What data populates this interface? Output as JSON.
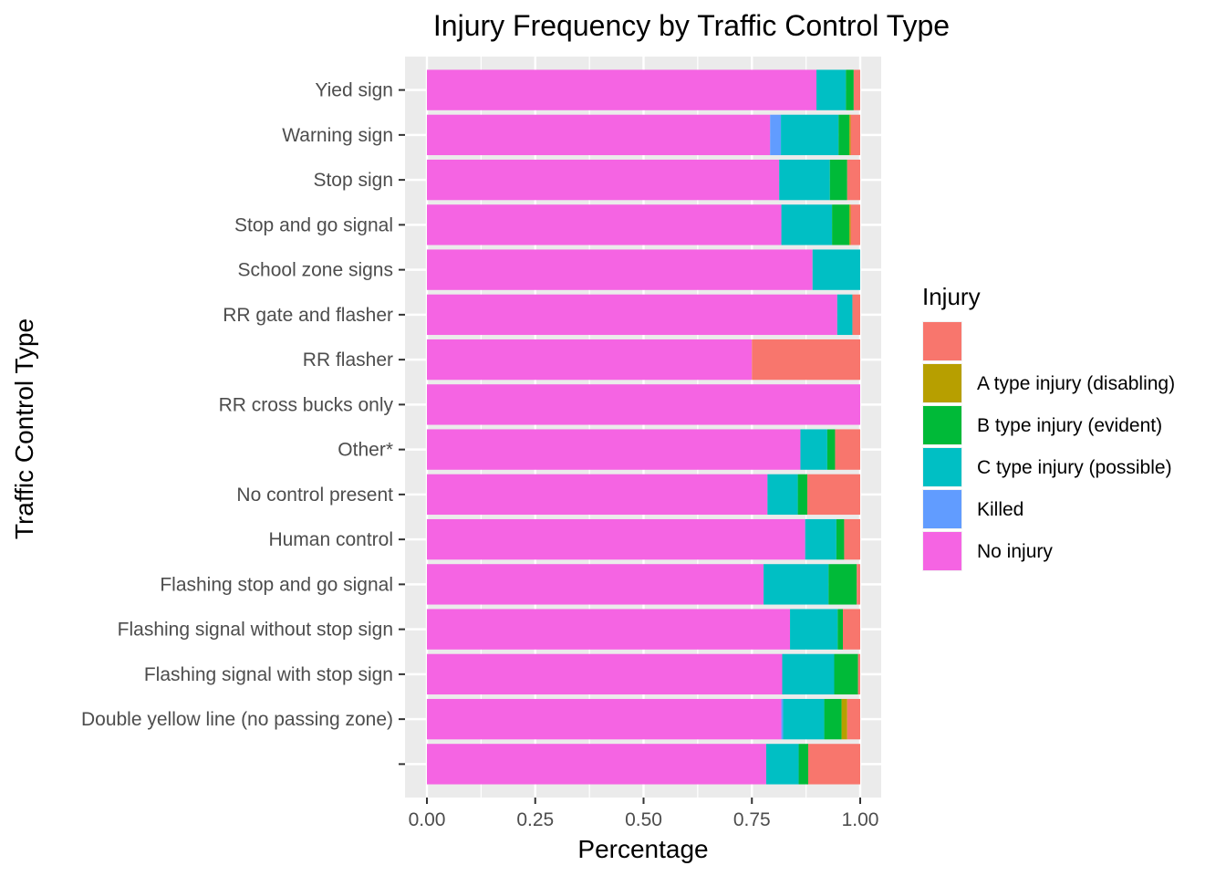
{
  "chart_data": {
    "type": "bar",
    "orientation": "horizontal",
    "stacked": true,
    "title": "Injury Frequency by Traffic Control Type",
    "xlabel": "Percentage",
    "ylabel": "Traffic Control Type",
    "xlim": [
      0,
      1
    ],
    "x_ticks": [
      "0.00",
      "0.25",
      "0.50",
      "0.75",
      "1.00"
    ],
    "x_tick_values": [
      0,
      0.25,
      0.5,
      0.75,
      1
    ],
    "grid": true,
    "legend_position": "right",
    "legend_title": "Injury",
    "categories": [
      "Yied sign",
      "Warning sign",
      "Stop sign",
      "Stop and go signal",
      "School zone signs",
      "RR gate and flasher",
      "RR flasher",
      "RR cross bucks only",
      "Other*",
      "No control present",
      "Human control",
      "Flashing stop and go signal",
      "Flashing signal without stop sign",
      "Flashing signal with stop sign",
      "Double yellow line (no passing zone)",
      ""
    ],
    "series": [
      {
        "name": "",
        "color": "#F8766D",
        "values": [
          0.015,
          0.022,
          0.03,
          0.022,
          0,
          0.018,
          0.25,
          0,
          0.058,
          0.122,
          0.037,
          0.008,
          0.04,
          0.005,
          0.03,
          0.12
        ]
      },
      {
        "name": "A type injury (disabling)",
        "color": "#B79F00",
        "values": [
          0,
          0.003,
          0,
          0.003,
          0,
          0,
          0,
          0,
          0,
          0,
          0,
          0,
          0,
          0,
          0.013,
          0
        ]
      },
      {
        "name": "B type injury (evident)",
        "color": "#00BA38",
        "values": [
          0.018,
          0.025,
          0.04,
          0.04,
          0,
          0,
          0,
          0,
          0.018,
          0.022,
          0.018,
          0.065,
          0.012,
          0.055,
          0.04,
          0.022
        ]
      },
      {
        "name": "C type injury (possible)",
        "color": "#00BFC4",
        "values": [
          0.068,
          0.133,
          0.117,
          0.117,
          0.11,
          0.035,
          0,
          0,
          0.062,
          0.07,
          0.072,
          0.15,
          0.11,
          0.12,
          0.095,
          0.075
        ]
      },
      {
        "name": "Killed",
        "color": "#619CFF",
        "values": [
          0,
          0.025,
          0,
          0,
          0,
          0,
          0,
          0,
          0,
          0,
          0,
          0,
          0,
          0,
          0.004,
          0
        ]
      },
      {
        "name": "No injury",
        "color": "#F564E3",
        "values": [
          0.899,
          0.792,
          0.813,
          0.818,
          0.89,
          0.947,
          0.75,
          1,
          0.862,
          0.786,
          0.873,
          0.777,
          0.838,
          0.82,
          0.818,
          0.783
        ]
      }
    ]
  }
}
